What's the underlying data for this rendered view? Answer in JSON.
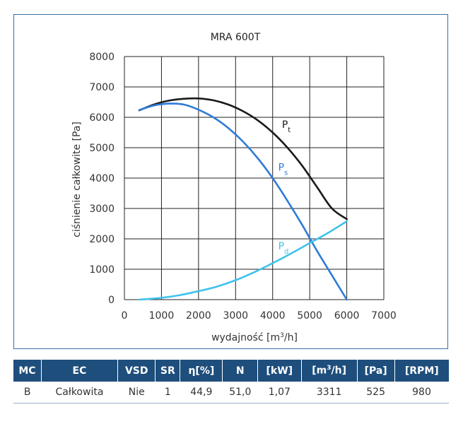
{
  "chart_data": {
    "type": "line",
    "title": "MRA 600T",
    "xlabel": "wydajność [m³/h]",
    "ylabel": "ciśnienie całkowite [Pa]",
    "xlim": [
      0,
      7000
    ],
    "ylim": [
      0,
      8000
    ],
    "xticks": [
      "0",
      "1000",
      "2000",
      "3000",
      "4000",
      "5000",
      "6000",
      "7000"
    ],
    "yticks": [
      "0",
      "1000",
      "2000",
      "3000",
      "4000",
      "5000",
      "6000",
      "7000",
      "8000"
    ],
    "grid": true,
    "series": [
      {
        "name": "Pt",
        "label_main": "P",
        "label_sub": "t",
        "color": "#1a1a1a",
        "label_at": [
          4250,
          5650
        ],
        "points": [
          [
            400,
            6230
          ],
          [
            800,
            6420
          ],
          [
            1200,
            6550
          ],
          [
            1600,
            6610
          ],
          [
            2000,
            6620
          ],
          [
            2400,
            6560
          ],
          [
            2800,
            6420
          ],
          [
            3200,
            6200
          ],
          [
            3600,
            5900
          ],
          [
            4000,
            5500
          ],
          [
            4400,
            5000
          ],
          [
            4800,
            4400
          ],
          [
            5200,
            3700
          ],
          [
            5600,
            3000
          ],
          [
            6000,
            2650
          ]
        ]
      },
      {
        "name": "Ps",
        "label_main": "P",
        "label_sub": "s",
        "color": "#2f7bd6",
        "label_at": [
          4150,
          4250
        ],
        "points": [
          [
            400,
            6240
          ],
          [
            800,
            6390
          ],
          [
            1200,
            6450
          ],
          [
            1600,
            6420
          ],
          [
            2000,
            6250
          ],
          [
            2400,
            6000
          ],
          [
            2800,
            5650
          ],
          [
            3200,
            5200
          ],
          [
            3600,
            4650
          ],
          [
            4000,
            4000
          ],
          [
            4400,
            3250
          ],
          [
            4800,
            2450
          ],
          [
            5200,
            1600
          ],
          [
            5600,
            800
          ],
          [
            6000,
            0
          ]
        ]
      },
      {
        "name": "Pd",
        "label_main": "P",
        "label_sub": "d",
        "color": "#3ec3ec",
        "label_at": [
          4150,
          1650
        ],
        "points": [
          [
            400,
            0
          ],
          [
            1000,
            60
          ],
          [
            1500,
            150
          ],
          [
            2000,
            280
          ],
          [
            2500,
            430
          ],
          [
            3000,
            640
          ],
          [
            3500,
            900
          ],
          [
            4000,
            1200
          ],
          [
            4500,
            1520
          ],
          [
            5000,
            1860
          ],
          [
            5500,
            2200
          ],
          [
            6000,
            2580
          ]
        ]
      }
    ]
  },
  "table": {
    "headers": [
      "MC",
      "EC",
      "VSD",
      "SR",
      "η[%]",
      "N",
      "[kW]",
      "[m³/h]",
      "[Pa]",
      "[RPM]"
    ],
    "rows": [
      [
        "B",
        "Całkowita",
        "Nie",
        "1",
        "44,9",
        "51,0",
        "1,07",
        "3311",
        "525",
        "980"
      ]
    ]
  }
}
